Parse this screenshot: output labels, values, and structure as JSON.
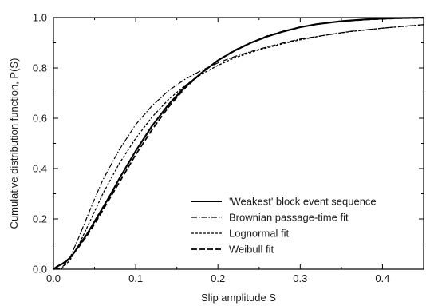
{
  "chart_data": {
    "type": "line",
    "xlabel": "Slip amplitude S",
    "ylabel": "Cumulative distribution function, P(S)",
    "xlim": [
      0.0,
      0.45
    ],
    "ylim": [
      0.0,
      1.0
    ],
    "x_ticks": [
      "0.0",
      "0.1",
      "0.2",
      "0.3",
      "0.4"
    ],
    "y_ticks": [
      "0.0",
      "0.2",
      "0.4",
      "0.6",
      "0.8",
      "1.0"
    ],
    "grid": false,
    "legend_position": "bottom-right",
    "series": [
      {
        "name": "'Weakest' block event sequence",
        "style": "solid-thick",
        "color": "#000000",
        "x": [
          0.0,
          0.005,
          0.01,
          0.015,
          0.02,
          0.025,
          0.03,
          0.04,
          0.05,
          0.06,
          0.07,
          0.08,
          0.09,
          0.1,
          0.12,
          0.14,
          0.16,
          0.18,
          0.2,
          0.22,
          0.24,
          0.26,
          0.28,
          0.3,
          0.32,
          0.35,
          0.38,
          0.4,
          0.42,
          0.45
        ],
        "y": [
          0.0,
          0.012,
          0.02,
          0.03,
          0.045,
          0.065,
          0.09,
          0.135,
          0.19,
          0.245,
          0.3,
          0.36,
          0.415,
          0.47,
          0.57,
          0.655,
          0.725,
          0.78,
          0.83,
          0.868,
          0.9,
          0.925,
          0.945,
          0.962,
          0.974,
          0.986,
          0.993,
          0.996,
          0.998,
          1.0
        ]
      },
      {
        "name": "Brownian passage-time fit",
        "style": "dash-dot",
        "color": "#000000",
        "x": [
          0.0,
          0.01,
          0.02,
          0.03,
          0.04,
          0.05,
          0.06,
          0.08,
          0.1,
          0.12,
          0.14,
          0.16,
          0.18,
          0.2,
          0.22,
          0.25,
          0.28,
          0.3,
          0.33,
          0.36,
          0.4,
          0.45
        ],
        "y": [
          0.0,
          0.005,
          0.045,
          0.12,
          0.2,
          0.28,
          0.355,
          0.475,
          0.575,
          0.65,
          0.71,
          0.755,
          0.79,
          0.82,
          0.845,
          0.875,
          0.9,
          0.915,
          0.93,
          0.945,
          0.958,
          0.972
        ]
      },
      {
        "name": "Lognormal fit",
        "style": "dotted",
        "color": "#000000",
        "x": [
          0.0,
          0.01,
          0.02,
          0.03,
          0.04,
          0.05,
          0.06,
          0.08,
          0.1,
          0.12,
          0.14,
          0.16,
          0.18,
          0.2,
          0.22,
          0.25,
          0.28,
          0.3,
          0.33,
          0.36,
          0.4,
          0.45
        ],
        "y": [
          0.0,
          0.003,
          0.035,
          0.09,
          0.16,
          0.23,
          0.3,
          0.42,
          0.52,
          0.605,
          0.675,
          0.73,
          0.775,
          0.81,
          0.84,
          0.872,
          0.897,
          0.912,
          0.93,
          0.944,
          0.958,
          0.972
        ]
      },
      {
        "name": "Weibull fit",
        "style": "dashed",
        "color": "#000000",
        "x": [
          0.0,
          0.01,
          0.02,
          0.03,
          0.04,
          0.05,
          0.06,
          0.07,
          0.08,
          0.09,
          0.1,
          0.12,
          0.14,
          0.16,
          0.18,
          0.2,
          0.22,
          0.24,
          0.26,
          0.28,
          0.3,
          0.32,
          0.35,
          0.38,
          0.4,
          0.42,
          0.45
        ],
        "y": [
          0.0,
          0.02,
          0.045,
          0.085,
          0.13,
          0.18,
          0.235,
          0.29,
          0.345,
          0.4,
          0.455,
          0.555,
          0.645,
          0.72,
          0.78,
          0.83,
          0.87,
          0.9,
          0.927,
          0.946,
          0.962,
          0.974,
          0.985,
          0.992,
          0.995,
          0.997,
          0.999
        ]
      }
    ]
  }
}
